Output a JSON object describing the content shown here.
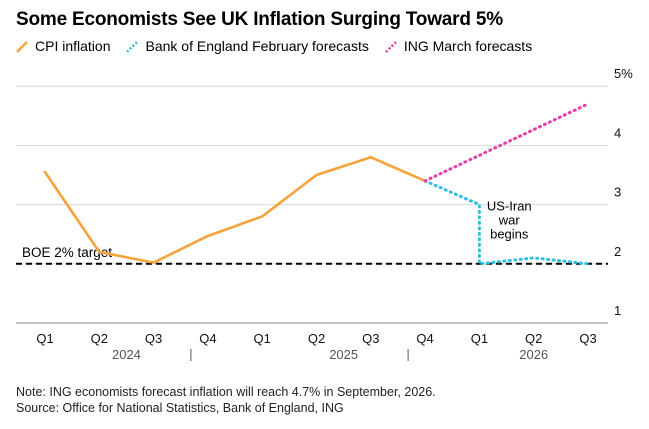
{
  "chart_data": {
    "type": "line",
    "title": "Some Economists See UK Inflation Surging Toward 5%",
    "categories": [
      "Q1",
      "Q2",
      "Q3",
      "Q4",
      "Q1",
      "Q2",
      "Q3",
      "Q4",
      "Q1",
      "Q2",
      "Q3"
    ],
    "years": [
      {
        "label": "2024"
      },
      {
        "label": "2025"
      },
      {
        "label": "2026"
      }
    ],
    "ylim": [
      1,
      5
    ],
    "yticks": [
      {
        "value": 5,
        "label": "5%"
      },
      {
        "value": 4,
        "label": "4"
      },
      {
        "value": 3,
        "label": "3"
      },
      {
        "value": 2,
        "label": "2"
      },
      {
        "value": 1,
        "label": "1"
      }
    ],
    "series": [
      {
        "name": "CPI inflation",
        "color": "#f5a33a",
        "style": "solid",
        "points": [
          [
            0,
            3.55
          ],
          [
            1,
            2.2
          ],
          [
            2,
            2.02
          ],
          [
            3,
            2.47
          ],
          [
            4,
            2.8
          ],
          [
            5,
            3.5
          ],
          [
            6,
            3.8
          ],
          [
            7,
            3.4
          ]
        ]
      },
      {
        "name": "Bank of England February forecasts",
        "color": "#2bbfe0",
        "style": "dotted",
        "points": [
          [
            7,
            3.4
          ],
          [
            8,
            3.0
          ],
          [
            8,
            2.0
          ],
          [
            9,
            2.1
          ],
          [
            10,
            2.0
          ]
        ]
      },
      {
        "name": "ING March forecasts",
        "color": "#ee3aa0",
        "style": "dotted",
        "points": [
          [
            7,
            3.4
          ],
          [
            10,
            4.7
          ]
        ]
      }
    ],
    "reference_line": {
      "value": 2.0,
      "label": "BOE 2% target"
    },
    "annotation": {
      "lines": [
        "US-Iran",
        "war",
        "begins"
      ],
      "x": 8.55,
      "y": 3.0
    }
  },
  "footnotes": {
    "note": "Note: ING economists forecast inflation will reach 4.7% in September, 2026.",
    "source": "Source: Office for National Statistics, Bank of England, ING"
  }
}
